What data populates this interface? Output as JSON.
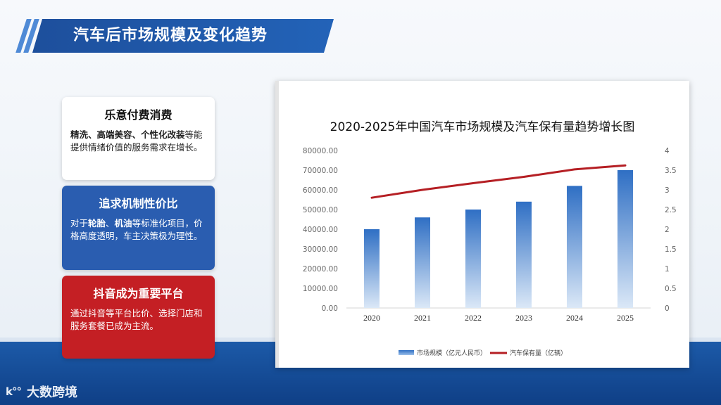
{
  "header": {
    "title": "汽车后市场规模及变化趋势"
  },
  "cards": [
    {
      "title": "乐意付费消费",
      "body_bold": "精洗、高端美容、个性化改装",
      "body_rest": "等能提供情绪价值的服务需求在增长。"
    },
    {
      "title": "追求机制性价比",
      "body_prefix": "对于",
      "body_bold_1": "轮胎",
      "body_sep": "、",
      "body_bold_2": "机油",
      "body_rest": "等标准化项目，价格高度透明，车主决策极为理性。"
    },
    {
      "title": "抖音成为重要平台",
      "body_rest": "通过抖音等平台比价、选择门店和服务套餐已成为主流。"
    }
  ],
  "logo": {
    "mark": "k°°",
    "text": "大数跨境"
  },
  "colors": {
    "banner": "#1d4f9c",
    "card_blue": "#2a5db0",
    "card_red": "#c41f24",
    "bar": "#3f7fd0",
    "line": "#b51f24"
  },
  "chart_data": {
    "type": "bar+line",
    "title": "2020-2025年中国汽车市场规模及汽车保有量趋势增长图",
    "categories": [
      "2020",
      "2021",
      "2022",
      "2023",
      "2024",
      "2025"
    ],
    "series": [
      {
        "name": "市场规模（亿元人民币）",
        "type": "bar",
        "axis": "left",
        "values": [
          40000,
          46000,
          50000,
          54000,
          62000,
          70000
        ]
      },
      {
        "name": "汽车保有量（亿辆）",
        "type": "line",
        "axis": "right",
        "values": [
          2.8,
          3.0,
          3.17,
          3.33,
          3.52,
          3.62
        ]
      }
    ],
    "y_left": {
      "min": 0,
      "max": 80000,
      "step": 10000,
      "ticks": [
        "0.00",
        "10000.00",
        "20000.00",
        "30000.00",
        "40000.00",
        "50000.00",
        "60000.00",
        "70000.00",
        "80000.00"
      ]
    },
    "y_right": {
      "min": 0,
      "max": 4,
      "step": 0.5,
      "ticks": [
        "0",
        "0.5",
        "1",
        "1.5",
        "2",
        "2.5",
        "3",
        "3.5",
        "4"
      ]
    },
    "legend_position": "bottom",
    "grid": false
  }
}
